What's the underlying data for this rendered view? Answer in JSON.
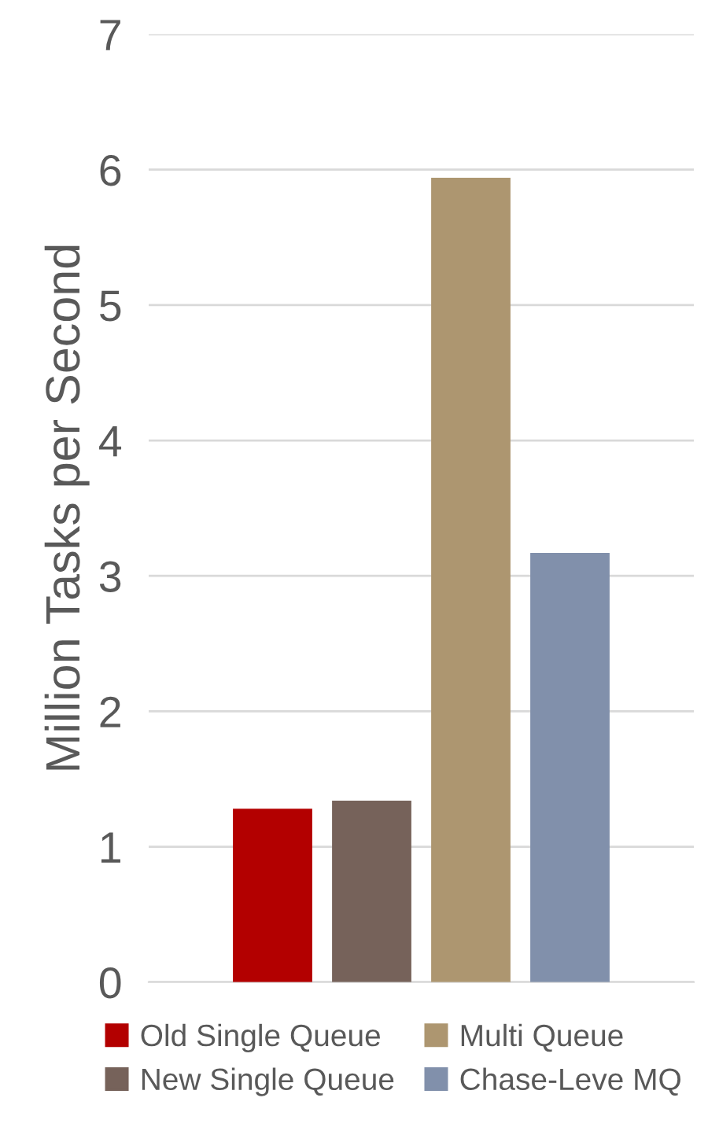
{
  "chart_data": {
    "type": "bar",
    "ylabel": "Million Tasks per Second",
    "categories": [
      null
    ],
    "series": [
      {
        "name": "Old Single Queue",
        "color": "#b30000",
        "values": [
          1.28
        ]
      },
      {
        "name": "New Single Queue",
        "color": "#76625a",
        "values": [
          1.34
        ]
      },
      {
        "name": "Multi Queue",
        "color": "#ad9670",
        "values": [
          5.94
        ]
      },
      {
        "name": "Chase-Leve MQ",
        "color": "#8190ab",
        "values": [
          3.17
        ]
      }
    ],
    "ylim": [
      0,
      7
    ],
    "yticks": [
      0,
      1,
      2,
      3,
      4,
      5,
      6,
      7
    ],
    "grid": "y",
    "legend": "bottom"
  }
}
